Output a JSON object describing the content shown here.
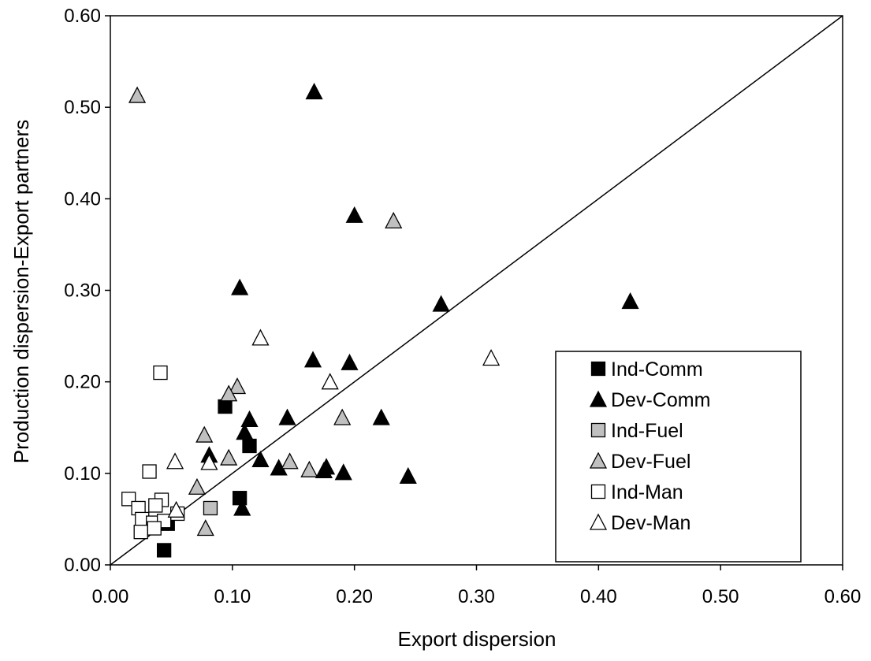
{
  "chart_data": {
    "type": "scatter",
    "xlabel": "Export dispersion",
    "ylabel": "Production dispersion-Export partners",
    "xlim": [
      0.0,
      0.6
    ],
    "ylim": [
      0.0,
      0.6
    ],
    "x_ticks": [
      "0.00",
      "0.10",
      "0.20",
      "0.30",
      "0.40",
      "0.50",
      "0.60"
    ],
    "y_ticks": [
      "0.00",
      "0.10",
      "0.20",
      "0.30",
      "0.40",
      "0.50",
      "0.60"
    ],
    "grid": false,
    "reference_line": {
      "type": "diagonal",
      "from": [
        0,
        0
      ],
      "to": [
        0.6,
        0.6
      ]
    },
    "legend_position": "bottom-right",
    "series": [
      {
        "name": "Ind-Comm",
        "marker": "square",
        "fill": "#000000",
        "stroke": "#000000",
        "points": [
          [
            0.094,
            0.173
          ],
          [
            0.114,
            0.13
          ],
          [
            0.106,
            0.073
          ],
          [
            0.047,
            0.045
          ],
          [
            0.044,
            0.016
          ]
        ]
      },
      {
        "name": "Dev-Comm",
        "marker": "triangle",
        "fill": "#000000",
        "stroke": "#000000",
        "points": [
          [
            0.167,
            0.517
          ],
          [
            0.2,
            0.382
          ],
          [
            0.106,
            0.303
          ],
          [
            0.271,
            0.285
          ],
          [
            0.426,
            0.288
          ],
          [
            0.166,
            0.224
          ],
          [
            0.196,
            0.221
          ],
          [
            0.145,
            0.161
          ],
          [
            0.114,
            0.159
          ],
          [
            0.222,
            0.161
          ],
          [
            0.11,
            0.145
          ],
          [
            0.081,
            0.12
          ],
          [
            0.123,
            0.115
          ],
          [
            0.138,
            0.106
          ],
          [
            0.177,
            0.107
          ],
          [
            0.175,
            0.103
          ],
          [
            0.191,
            0.101
          ],
          [
            0.244,
            0.097
          ],
          [
            0.108,
            0.062
          ]
        ]
      },
      {
        "name": "Ind-Fuel",
        "marker": "square",
        "fill": "#c0c0c0",
        "stroke": "#000000",
        "points": [
          [
            0.082,
            0.062
          ]
        ]
      },
      {
        "name": "Dev-Fuel",
        "marker": "triangle",
        "fill": "#c0c0c0",
        "stroke": "#000000",
        "points": [
          [
            0.022,
            0.513
          ],
          [
            0.232,
            0.376
          ],
          [
            0.104,
            0.195
          ],
          [
            0.097,
            0.187
          ],
          [
            0.19,
            0.161
          ],
          [
            0.077,
            0.142
          ],
          [
            0.097,
            0.117
          ],
          [
            0.147,
            0.113
          ],
          [
            0.163,
            0.104
          ],
          [
            0.071,
            0.085
          ],
          [
            0.078,
            0.04
          ]
        ]
      },
      {
        "name": "Ind-Man",
        "marker": "square",
        "fill": "#ffffff",
        "stroke": "#000000",
        "points": [
          [
            0.041,
            0.21
          ],
          [
            0.032,
            0.102
          ],
          [
            0.015,
            0.072
          ],
          [
            0.042,
            0.071
          ],
          [
            0.023,
            0.062
          ],
          [
            0.037,
            0.065
          ],
          [
            0.055,
            0.056
          ],
          [
            0.026,
            0.05
          ],
          [
            0.035,
            0.046
          ],
          [
            0.044,
            0.048
          ],
          [
            0.036,
            0.04
          ],
          [
            0.025,
            0.036
          ]
        ]
      },
      {
        "name": "Dev-Man",
        "marker": "triangle",
        "fill": "#ffffff",
        "stroke": "#000000",
        "points": [
          [
            0.123,
            0.248
          ],
          [
            0.312,
            0.226
          ],
          [
            0.18,
            0.2
          ],
          [
            0.053,
            0.113
          ],
          [
            0.081,
            0.112
          ],
          [
            0.054,
            0.06
          ]
        ]
      }
    ]
  }
}
